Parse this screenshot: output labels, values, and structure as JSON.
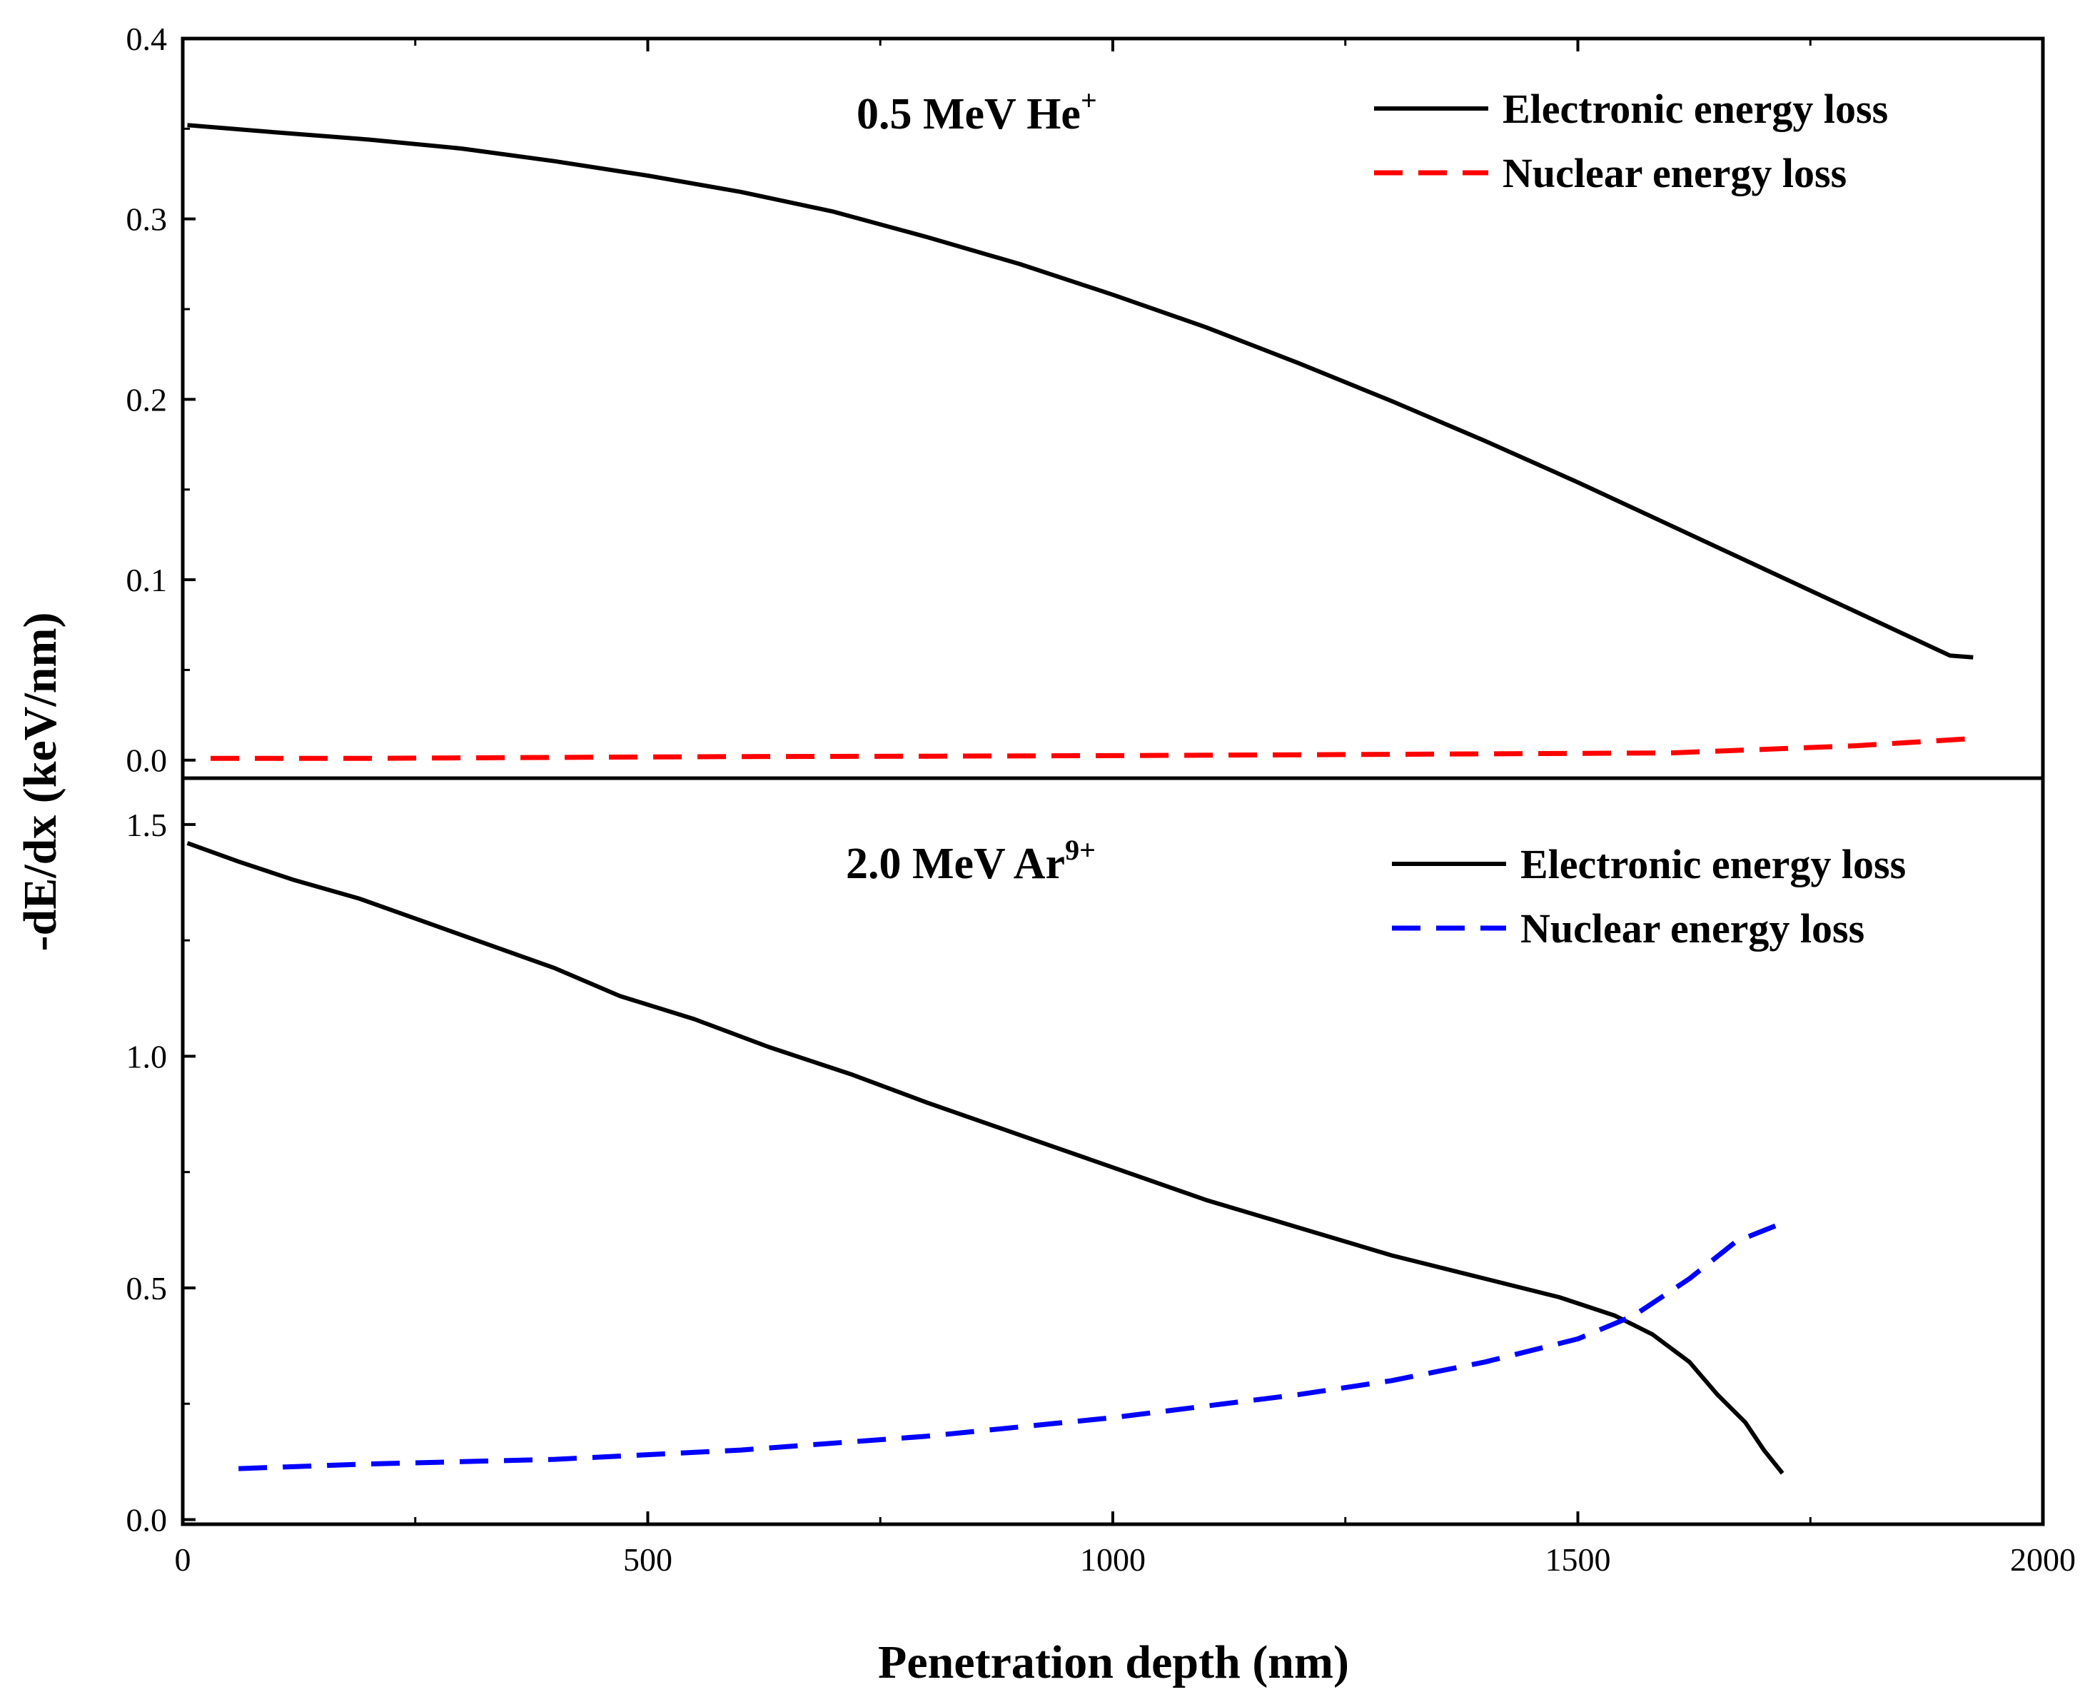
{
  "figure": {
    "xlabel": "Penetration depth (nm)",
    "ylabel": "-dE/dx (keV/nm)",
    "xticks": [
      "0",
      "500",
      "1000",
      "1500",
      "2000"
    ]
  },
  "colors": {
    "electronic": "#000000",
    "nuclear_he": "#ff0000",
    "nuclear_ar": "#0000ff",
    "axes": "#000000"
  },
  "chart_data": [
    {
      "type": "line",
      "panel": "top",
      "title_main": "0.5 MeV He",
      "title_sup": "+",
      "xlim": [
        0,
        2000
      ],
      "ylim": [
        -0.01,
        0.4
      ],
      "yticks": [
        "0.0",
        "0.1",
        "0.2",
        "0.3",
        "0.4"
      ],
      "legend": [
        "Electronic energy loss",
        "Nuclear energy loss"
      ],
      "legend_position": "top-right",
      "series": [
        {
          "name": "Electronic energy loss",
          "style": "solid",
          "x": [
            5,
            100,
            200,
            300,
            400,
            500,
            600,
            700,
            800,
            900,
            1000,
            1100,
            1200,
            1300,
            1400,
            1500,
            1600,
            1700,
            1800,
            1900,
            1925
          ],
          "y": [
            0.352,
            0.348,
            0.344,
            0.339,
            0.332,
            0.324,
            0.315,
            0.304,
            0.29,
            0.275,
            0.258,
            0.24,
            0.22,
            0.199,
            0.177,
            0.154,
            0.13,
            0.106,
            0.082,
            0.058,
            0.057
          ]
        },
        {
          "name": "Nuclear energy loss",
          "style": "dashed",
          "x": [
            30,
            200,
            400,
            600,
            800,
            1000,
            1200,
            1400,
            1600,
            1700,
            1800,
            1925
          ],
          "y": [
            0.001,
            0.001,
            0.0015,
            0.002,
            0.0022,
            0.0025,
            0.003,
            0.0035,
            0.004,
            0.006,
            0.008,
            0.012
          ]
        }
      ]
    },
    {
      "type": "line",
      "panel": "bottom",
      "title_main": "2.0 MeV Ar",
      "title_sup": "9+",
      "xlim": [
        0,
        2000
      ],
      "ylim": [
        -0.01,
        1.6
      ],
      "yticks": [
        "0.0",
        "0.5",
        "1.0",
        "1.5"
      ],
      "legend": [
        "Electronic energy loss",
        "Nuclear energy loss"
      ],
      "legend_position": "top-right",
      "series": [
        {
          "name": "Electronic energy loss",
          "style": "solid",
          "x": [
            5,
            60,
            120,
            190,
            260,
            330,
            400,
            470,
            550,
            630,
            720,
            800,
            900,
            1000,
            1100,
            1200,
            1300,
            1400,
            1480,
            1540,
            1580,
            1620,
            1650,
            1680,
            1700,
            1720
          ],
          "y": [
            1.46,
            1.42,
            1.38,
            1.34,
            1.29,
            1.24,
            1.19,
            1.13,
            1.08,
            1.02,
            0.96,
            0.9,
            0.83,
            0.76,
            0.69,
            0.63,
            0.57,
            0.52,
            0.48,
            0.44,
            0.4,
            0.34,
            0.27,
            0.21,
            0.15,
            0.1
          ]
        },
        {
          "name": "Nuclear energy loss",
          "style": "dashed",
          "x": [
            60,
            200,
            400,
            600,
            800,
            1000,
            1200,
            1300,
            1400,
            1500,
            1560,
            1620,
            1670,
            1720
          ],
          "y": [
            0.11,
            0.12,
            0.13,
            0.15,
            0.18,
            0.22,
            0.27,
            0.3,
            0.34,
            0.39,
            0.44,
            0.52,
            0.6,
            0.64
          ]
        }
      ]
    }
  ]
}
